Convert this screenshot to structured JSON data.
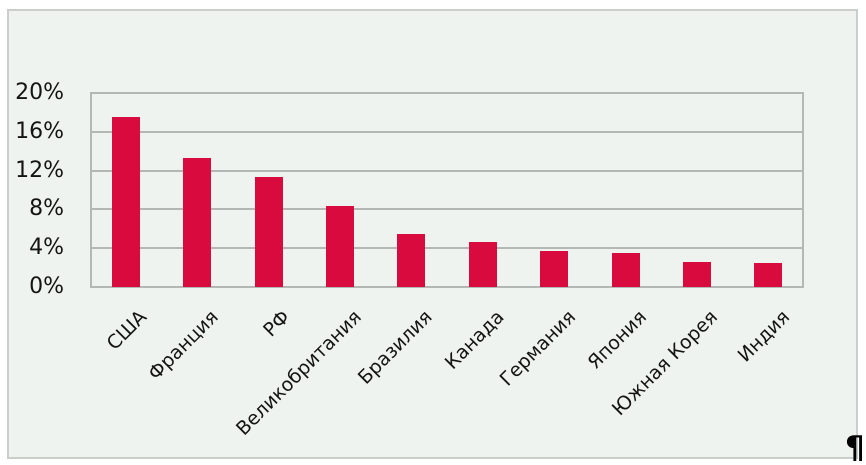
{
  "page": {
    "paragraph_mark": "¶"
  },
  "colors": {
    "bar": "#d80a3e",
    "chart_background": "#eff3ef",
    "frame_border": "#cbcfcb",
    "grid": "#b4b8b4",
    "text": "#141414"
  },
  "chart_data": {
    "type": "bar",
    "title": "",
    "xlabel": "",
    "ylabel": "",
    "categories": [
      "США",
      "Франция",
      "РФ",
      "Великобритания",
      "Бразилия",
      "Канада",
      "Германия",
      "Япония",
      "Южная Корея",
      "Индия"
    ],
    "values": [
      17.5,
      13.3,
      11.3,
      8.4,
      5.5,
      4.6,
      3.7,
      3.5,
      2.6,
      2.5
    ],
    "ylim": [
      0,
      20
    ],
    "ytick_step": 4,
    "ytick_labels": [
      "0%",
      "4%",
      "8%",
      "12%",
      "16%",
      "20%"
    ],
    "grid": true,
    "legend": false,
    "x_label_rotation_deg": -45,
    "bar_color": "#d80a3e"
  }
}
